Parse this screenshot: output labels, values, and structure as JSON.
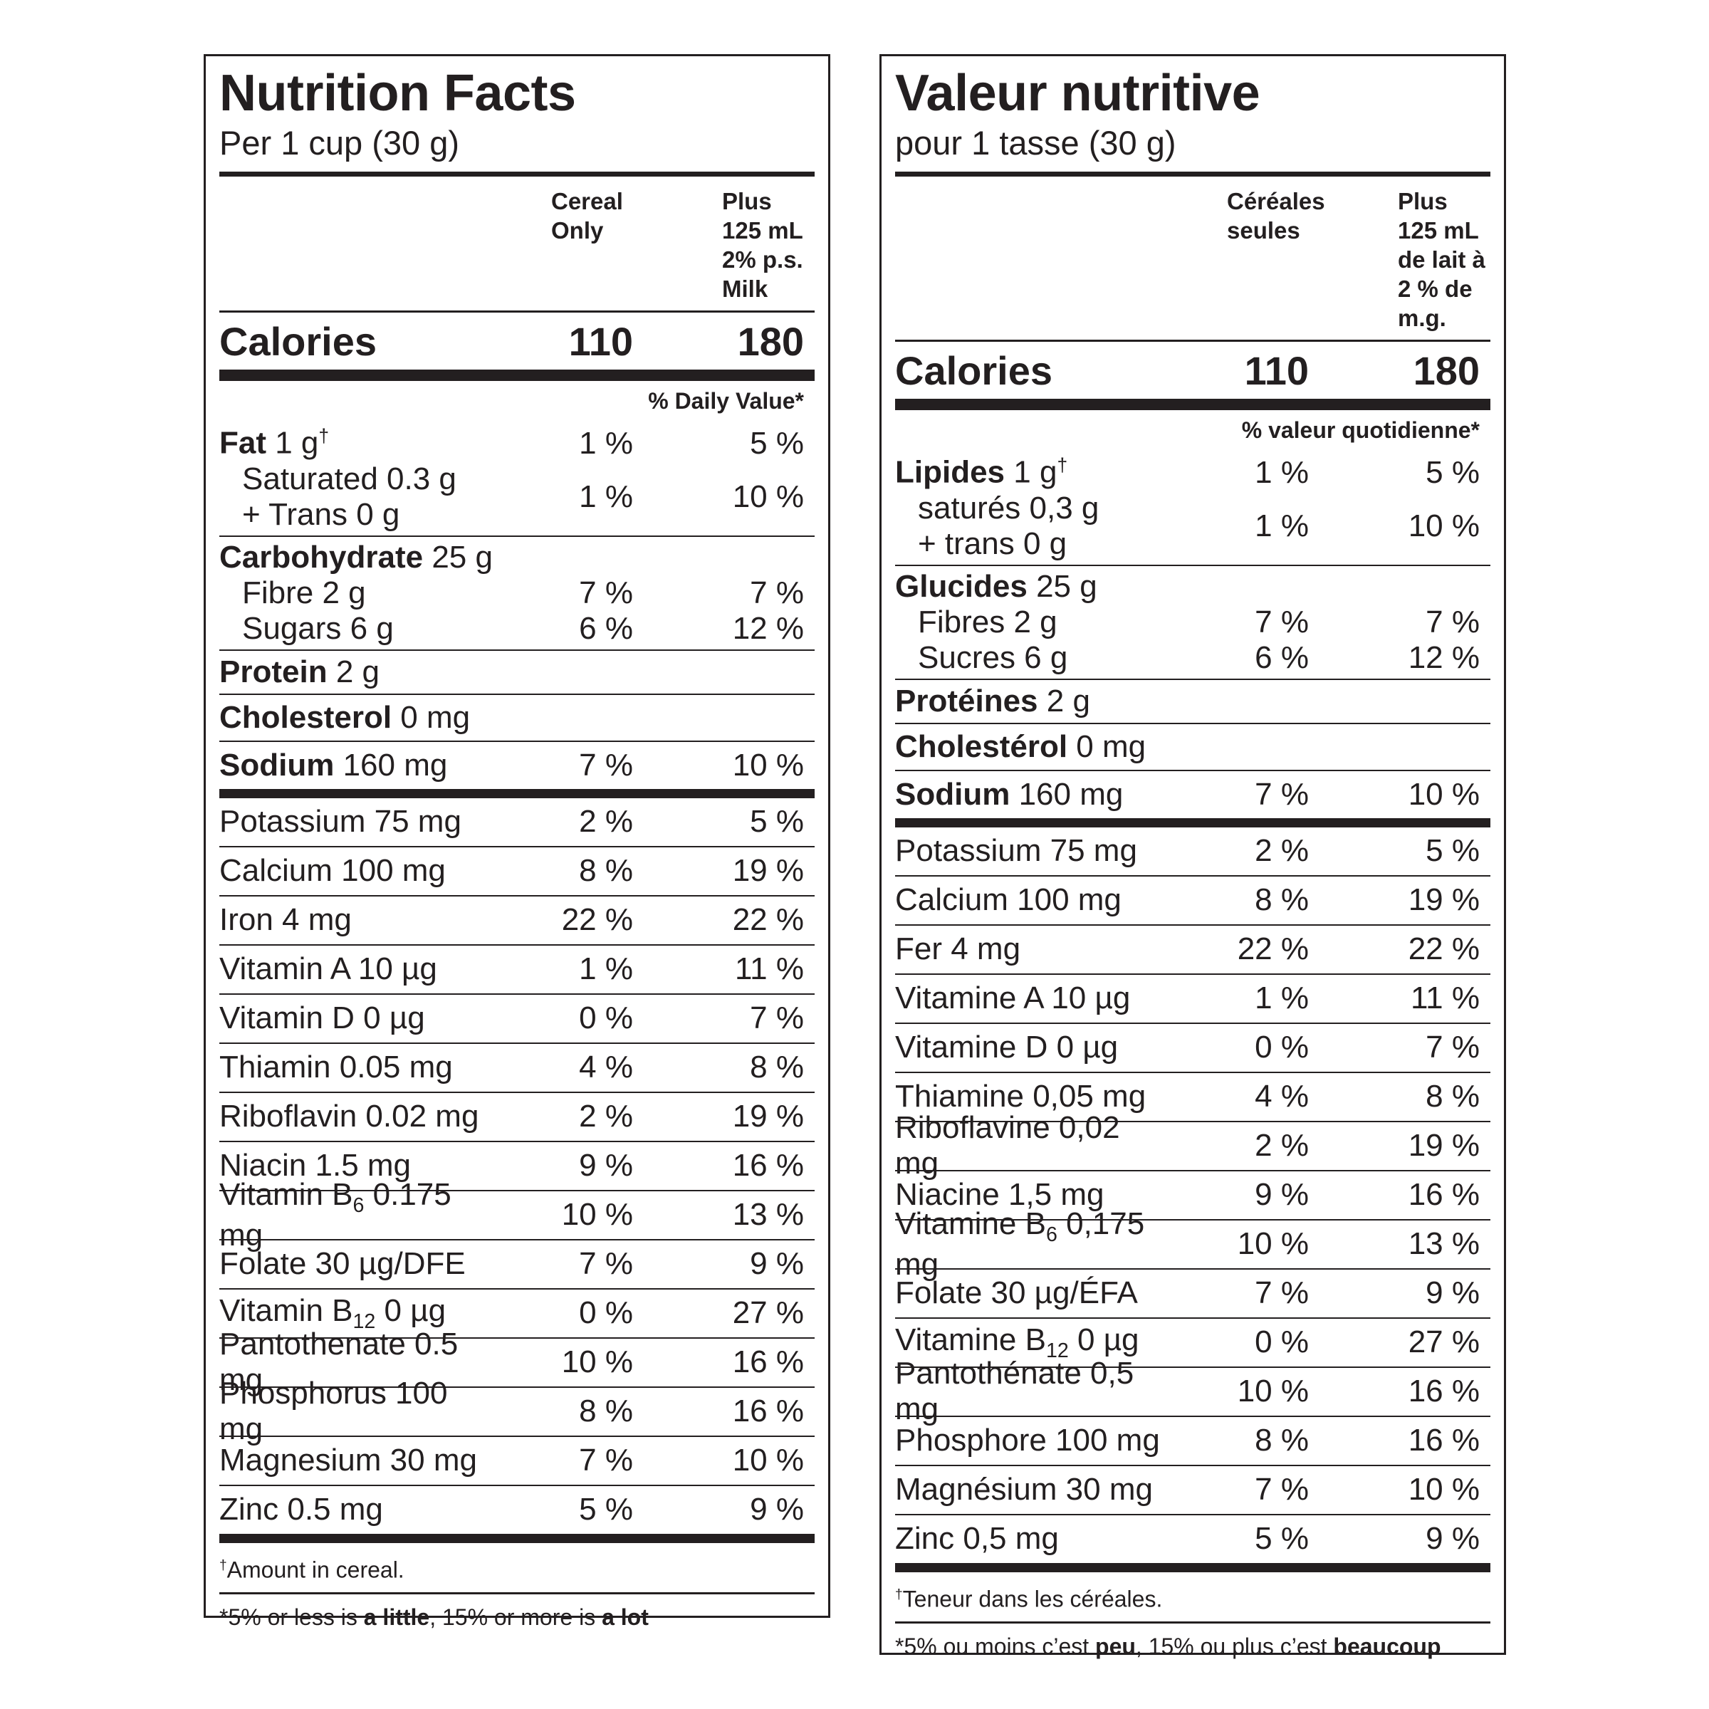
{
  "english": {
    "title": "Nutrition Facts",
    "serving": "Per 1 cup (30 g)",
    "col1": [
      "Cereal",
      "Only"
    ],
    "col2": [
      "Plus",
      "125 mL",
      "2% p.s.",
      "Milk"
    ],
    "calories_label": "Calories",
    "calories_cereal": "110",
    "calories_milk": "180",
    "dv_header": "% Daily Value*",
    "fat": {
      "name": "Fat",
      "amount": "1 g",
      "mark": "†",
      "v1": "1 %",
      "v2": "5 %"
    },
    "saturated": {
      "line1": "Saturated 0.3 g",
      "line2": "+ Trans 0 g",
      "v1": "1 %",
      "v2": "10 %"
    },
    "carb": {
      "name": "Carbohydrate",
      "amount": "25 g"
    },
    "fibre": {
      "label": "Fibre 2 g",
      "v1": "7 %",
      "v2": "7 %"
    },
    "sugars": {
      "label": "Sugars 6 g",
      "v1": "6 %",
      "v2": "12 %"
    },
    "protein": {
      "name": "Protein",
      "amount": "2 g"
    },
    "cholesterol": {
      "name": "Cholesterol",
      "amount": "0 mg"
    },
    "sodium": {
      "name": "Sodium",
      "amount": "160 mg",
      "v1": "7 %",
      "v2": "10 %"
    },
    "minerals": [
      {
        "label": "Potassium 75 mg",
        "v1": "2 %",
        "v2": "5 %"
      },
      {
        "label": "Calcium 100 mg",
        "v1": "8 %",
        "v2": "19 %"
      },
      {
        "label": "Iron 4 mg",
        "v1": "22 %",
        "v2": "22 %"
      },
      {
        "label": "Vitamin A 10 µg",
        "v1": "1 %",
        "v2": "11 %"
      },
      {
        "label": "Vitamin D 0 µg",
        "v1": "0 %",
        "v2": "7 %"
      },
      {
        "label": "Thiamin 0.05 mg",
        "v1": "4 %",
        "v2": "8 %"
      },
      {
        "label": "Riboflavin 0.02 mg",
        "v1": "2 %",
        "v2": "19 %"
      },
      {
        "label": "Niacin 1.5 mg",
        "v1": "9 %",
        "v2": "16 %"
      },
      {
        "label_pre": "Vitamin B",
        "label_sub": "6",
        "label_post": " 0.175 mg",
        "v1": "10 %",
        "v2": "13 %"
      },
      {
        "label": "Folate 30 µg/DFE",
        "v1": "7 %",
        "v2": "9 %"
      },
      {
        "label_pre": "Vitamin B",
        "label_sub": "12",
        "label_post": " 0 µg",
        "v1": "0 %",
        "v2": "27 %"
      },
      {
        "label": "Pantothenate 0.5 mg",
        "v1": "10 %",
        "v2": "16 %"
      },
      {
        "label": "Phosphorus 100 mg",
        "v1": "8 %",
        "v2": "16 %"
      },
      {
        "label": "Magnesium 30 mg",
        "v1": "7 %",
        "v2": "10 %"
      },
      {
        "label": "Zinc 0.5 mg",
        "v1": "5 %",
        "v2": "9 %"
      }
    ],
    "footnote1_mark": "†",
    "footnote1": "Amount in cereal.",
    "footnote2": {
      "a": "*5% or less is ",
      "b": "a little",
      "c": ", 15% or more is ",
      "d": "a lot"
    }
  },
  "french": {
    "title": "Valeur nutritive",
    "serving": "pour 1 tasse (30 g)",
    "col1": [
      "Céréales",
      "seules"
    ],
    "col2": [
      "Plus",
      "125 mL",
      "de lait à",
      "2 % de",
      "m.g."
    ],
    "calories_label": "Calories",
    "calories_cereal": "110",
    "calories_milk": "180",
    "dv_header": "% valeur quotidienne*",
    "fat": {
      "name": "Lipides",
      "amount": "1 g",
      "mark": "†",
      "v1": "1 %",
      "v2": "5 %"
    },
    "saturated": {
      "line1": "saturés 0,3 g",
      "line2": "+ trans 0 g",
      "v1": "1 %",
      "v2": "10 %"
    },
    "carb": {
      "name": "Glucides",
      "amount": "25 g"
    },
    "fibre": {
      "label": "Fibres 2 g",
      "v1": "7 %",
      "v2": "7 %"
    },
    "sugars": {
      "label": "Sucres 6 g",
      "v1": "6 %",
      "v2": "12 %"
    },
    "protein": {
      "name": "Protéines",
      "amount": "2 g"
    },
    "cholesterol": {
      "name": "Cholestérol",
      "amount": "0 mg"
    },
    "sodium": {
      "name": "Sodium",
      "amount": "160 mg",
      "v1": "7 %",
      "v2": "10 %"
    },
    "minerals": [
      {
        "label": "Potassium 75 mg",
        "v1": "2 %",
        "v2": "5 %"
      },
      {
        "label": "Calcium 100 mg",
        "v1": "8 %",
        "v2": "19 %"
      },
      {
        "label": "Fer 4 mg",
        "v1": "22 %",
        "v2": "22 %"
      },
      {
        "label": "Vitamine A 10 µg",
        "v1": "1 %",
        "v2": "11 %"
      },
      {
        "label": "Vitamine D 0 µg",
        "v1": "0 %",
        "v2": "7 %"
      },
      {
        "label": "Thiamine 0,05 mg",
        "v1": "4 %",
        "v2": "8 %"
      },
      {
        "label": "Riboflavine 0,02 mg",
        "v1": "2 %",
        "v2": "19 %"
      },
      {
        "label": "Niacine 1,5 mg",
        "v1": "9 %",
        "v2": "16 %"
      },
      {
        "label_pre": "Vitamine B",
        "label_sub": "6",
        "label_post": " 0,175 mg",
        "v1": "10 %",
        "v2": "13 %"
      },
      {
        "label": "Folate 30 µg/ÉFA",
        "v1": "7 %",
        "v2": "9 %"
      },
      {
        "label_pre": "Vitamine B",
        "label_sub": "12",
        "label_post": " 0 µg",
        "v1": "0 %",
        "v2": "27 %"
      },
      {
        "label": "Pantothénate 0,5 mg",
        "v1": "10 %",
        "v2": "16 %"
      },
      {
        "label": "Phosphore 100 mg",
        "v1": "8 %",
        "v2": "16 %"
      },
      {
        "label": "Magnésium 30 mg",
        "v1": "7 %",
        "v2": "10 %"
      },
      {
        "label": "Zinc 0,5 mg",
        "v1": "5 %",
        "v2": "9 %"
      }
    ],
    "footnote1_mark": "†",
    "footnote1": "Teneur dans les céréales.",
    "footnote2": {
      "a": "*5% ou moins c’est ",
      "b": "peu",
      "c": ", 15% ou plus c’est ",
      "d": "beaucoup"
    }
  }
}
